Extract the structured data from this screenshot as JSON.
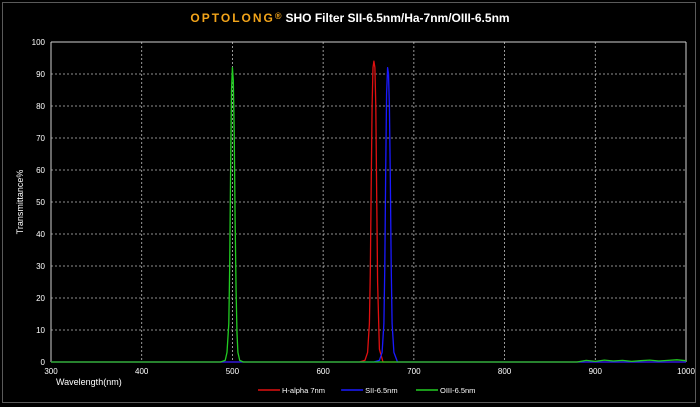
{
  "header": {
    "brand": "OPTOLONG",
    "brand_mark": "®",
    "title": "SHO Filter SII-6.5nm/Ha-7nm/OIII-6.5nm"
  },
  "chart_data": {
    "type": "line",
    "xlabel": "Wavelength(nm)",
    "ylabel": "Transmittance%",
    "xlim": [
      300,
      1000
    ],
    "ylim": [
      0,
      100
    ],
    "x_ticks": [
      "300",
      "400",
      "500",
      "600",
      "700",
      "800",
      "900",
      "1000"
    ],
    "y_ticks": [
      "0",
      "10",
      "20",
      "30",
      "40",
      "50",
      "60",
      "70",
      "80",
      "90",
      "100"
    ],
    "grid": true,
    "legend_position": "bottom",
    "background": "#000000",
    "series": [
      {
        "name": "H-alpha 7nm",
        "color": "#e01010",
        "x": [
          300,
          640,
          646,
          649,
          651,
          652,
          653,
          654,
          655,
          656,
          657,
          658,
          659,
          660,
          662,
          666,
          1000
        ],
        "y": [
          0,
          0,
          0.5,
          3,
          12,
          28,
          55,
          80,
          92,
          94,
          92,
          80,
          52,
          25,
          4,
          0,
          0
        ]
      },
      {
        "name": "SII-6.5nm",
        "color": "#1a1aff",
        "x": [
          300,
          656,
          662,
          665,
          667,
          668,
          669,
          670,
          671,
          672,
          673,
          674,
          675,
          676,
          678,
          682,
          1000
        ],
        "y": [
          0,
          0,
          0.5,
          3,
          12,
          30,
          60,
          84,
          92,
          90,
          80,
          58,
          30,
          12,
          3,
          0,
          0
        ]
      },
      {
        "name": "OIII-6.5nm",
        "color": "#22cc22",
        "x": [
          300,
          487,
          492,
          494,
          496,
          497,
          498,
          499,
          500,
          501,
          502,
          503,
          504,
          505,
          506,
          508,
          512,
          880,
          890,
          900,
          910,
          920,
          930,
          940,
          950,
          960,
          970,
          980,
          990,
          1000
        ],
        "y": [
          0,
          0,
          0.5,
          3,
          12,
          30,
          60,
          85,
          92,
          88,
          72,
          45,
          22,
          9,
          3,
          0.5,
          0,
          0,
          0.5,
          0.2,
          0.6,
          0.3,
          0.5,
          0.2,
          0.4,
          0.6,
          0.3,
          0.5,
          0.7,
          0.4
        ]
      }
    ]
  }
}
